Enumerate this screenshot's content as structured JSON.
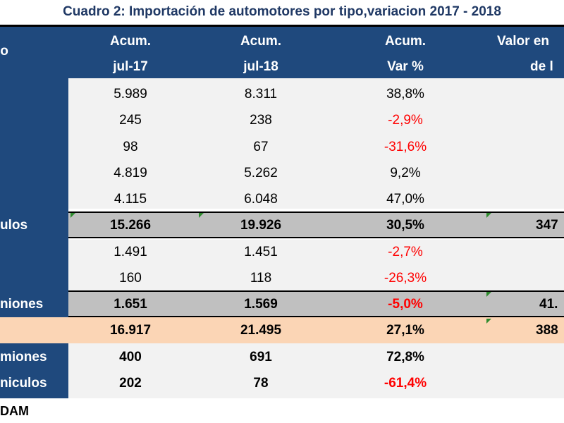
{
  "title": "Cuadro 2: Importación de automotores por tipo,variacion 2017 - 2018",
  "header": {
    "col0": "o",
    "col1_line1": "Acum.",
    "col1_line2": "jul-17",
    "col2_line1": "Acum.",
    "col2_line2": "jul-18",
    "col3_line1": "Acum.",
    "col3_line2": "Var %",
    "col4_line1": "Valor en",
    "col4_line2": "de l"
  },
  "rows": [
    {
      "label": "",
      "a": "5.989",
      "b": "8.311",
      "var": "38,8%",
      "val": ""
    },
    {
      "label": "",
      "a": "245",
      "b": "238",
      "var": "-2,9%",
      "val": ""
    },
    {
      "label": "",
      "a": "98",
      "b": "67",
      "var": "-31,6%",
      "val": ""
    },
    {
      "label": "",
      "a": "4.819",
      "b": "5.262",
      "var": "9,2%",
      "val": ""
    },
    {
      "label": "",
      "a": "4.115",
      "b": "6.048",
      "var": "47,0%",
      "val": ""
    },
    {
      "label": "ulos",
      "a": "15.266",
      "b": "19.926",
      "var": "30,5%",
      "val": "347"
    },
    {
      "label": "",
      "a": "1.491",
      "b": "1.451",
      "var": "-2,7%",
      "val": ""
    },
    {
      "label": "",
      "a": "160",
      "b": "118",
      "var": "-26,3%",
      "val": ""
    },
    {
      "label": "niones",
      "a": "1.651",
      "b": "1.569",
      "var": "-5,0%",
      "val": "41."
    },
    {
      "label": "",
      "a": "16.917",
      "b": "21.495",
      "var": "27,1%",
      "val": "388"
    },
    {
      "label": "miones",
      "a": "400",
      "b": "691",
      "var": "72,8%",
      "val": ""
    },
    {
      "label": "niculos",
      "a": "202",
      "b": "78",
      "var": "-61,4%",
      "val": ""
    }
  ],
  "footer": "DAM",
  "colors": {
    "navy": "#1f497d",
    "negative": "#ff0000",
    "total": "#fbd5b5",
    "subtotal": "#c0c0c0"
  }
}
